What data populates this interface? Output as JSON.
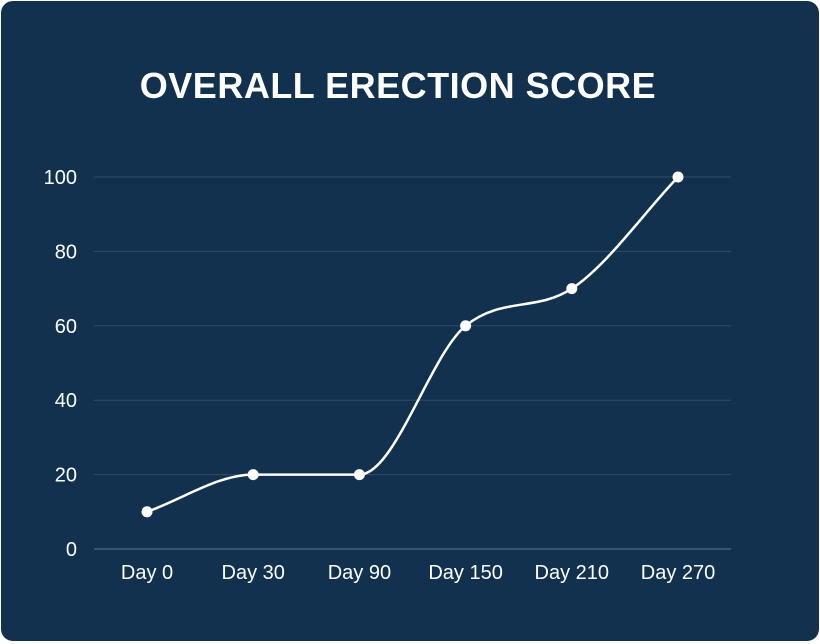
{
  "chart_data": {
    "type": "line",
    "title": "OVERALL ERECTION SCORE",
    "xlabel": "",
    "ylabel": "",
    "categories": [
      "Day 0",
      "Day 30",
      "Day 90",
      "Day 150",
      "Day 210",
      "Day 270"
    ],
    "series": [
      {
        "values": [
          10,
          20,
          20,
          60,
          70,
          100
        ]
      }
    ],
    "ylim": [
      0,
      100
    ],
    "yticks": [
      0,
      20,
      40,
      60,
      80,
      100
    ],
    "grid": true,
    "legend": "none",
    "colors": {
      "background": "#12314f",
      "line": "#ffffff",
      "grid": "#2e4d6b",
      "text": "#ffffff"
    }
  }
}
